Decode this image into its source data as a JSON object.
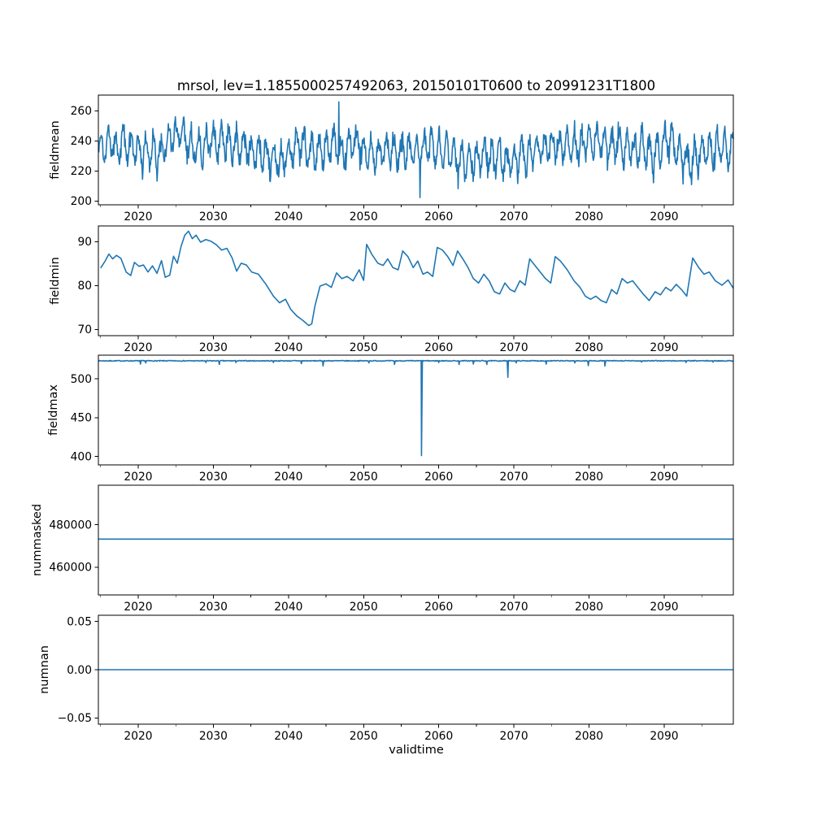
{
  "figure": {
    "title": "mrsol, lev=1.1855000257492063, 20150101T0600 to 20991231T1800",
    "xlabel": "validtime",
    "line_color": "#1f77b4",
    "background_color": "#ffffff",
    "text_color": "#000000",
    "x_range": [
      2014.7,
      2099.2
    ],
    "x_major_ticks": [
      2020,
      2030,
      2040,
      2050,
      2060,
      2070,
      2080,
      2090
    ],
    "x_major_tick_labels": [
      "2020",
      "2030",
      "2040",
      "2050",
      "2060",
      "2070",
      "2080",
      "2090"
    ],
    "x_minor_ticks": [
      2015,
      2025,
      2035,
      2045,
      2055,
      2065,
      2075,
      2085,
      2095
    ]
  },
  "chart_data": [
    {
      "type": "line",
      "ylabel": "fieldmean",
      "ylim": [
        197.5,
        270.5
      ],
      "ytick_values": [
        200,
        220,
        240,
        260
      ],
      "ytick_labels": [
        "200",
        "220",
        "240",
        "260"
      ],
      "series_spec": {
        "kind": "noisy-seasonal",
        "seed": 42,
        "mean": 236,
        "annual_amp": 9.5,
        "slow_amp": 6,
        "noise_amp": 7.5,
        "min_clip": 204,
        "max_clip": 266,
        "points_per_year": 16,
        "forced_points": [
          [
            2057.5,
            202.3
          ],
          [
            2046.7,
            266.0
          ]
        ]
      }
    },
    {
      "type": "line",
      "ylabel": "fieldmin",
      "ylim": [
        68.6,
        93.6
      ],
      "ytick_values": [
        70,
        80,
        90
      ],
      "ytick_labels": [
        "70",
        "80",
        "90"
      ],
      "keypoints": [
        [
          2015.0,
          84.0
        ],
        [
          2015.6,
          85.6
        ],
        [
          2016.1,
          87.2
        ],
        [
          2016.6,
          86.1
        ],
        [
          2017.1,
          86.9
        ],
        [
          2017.7,
          86.2
        ],
        [
          2018.4,
          83.1
        ],
        [
          2019.0,
          82.3
        ],
        [
          2019.5,
          85.3
        ],
        [
          2020.1,
          84.4
        ],
        [
          2020.7,
          84.7
        ],
        [
          2021.3,
          83.1
        ],
        [
          2021.9,
          84.5
        ],
        [
          2022.5,
          82.8
        ],
        [
          2023.1,
          85.7
        ],
        [
          2023.6,
          81.9
        ],
        [
          2024.2,
          82.4
        ],
        [
          2024.7,
          86.7
        ],
        [
          2025.2,
          85.1
        ],
        [
          2025.7,
          88.9
        ],
        [
          2026.2,
          91.5
        ],
        [
          2026.7,
          92.4
        ],
        [
          2027.2,
          90.7
        ],
        [
          2027.7,
          91.5
        ],
        [
          2028.3,
          89.9
        ],
        [
          2029.0,
          90.5
        ],
        [
          2029.7,
          90.1
        ],
        [
          2030.4,
          89.3
        ],
        [
          2031.1,
          88.1
        ],
        [
          2031.8,
          88.5
        ],
        [
          2032.5,
          86.3
        ],
        [
          2033.1,
          83.3
        ],
        [
          2033.7,
          85.1
        ],
        [
          2034.4,
          84.7
        ],
        [
          2035.1,
          83.1
        ],
        [
          2036.0,
          82.6
        ],
        [
          2037.0,
          80.3
        ],
        [
          2038.0,
          77.6
        ],
        [
          2038.8,
          76.1
        ],
        [
          2039.6,
          76.9
        ],
        [
          2040.3,
          74.6
        ],
        [
          2041.1,
          73.1
        ],
        [
          2041.9,
          72.1
        ],
        [
          2042.7,
          70.9
        ],
        [
          2043.1,
          71.3
        ],
        [
          2043.5,
          75.2
        ],
        [
          2044.2,
          79.9
        ],
        [
          2045.0,
          80.4
        ],
        [
          2045.7,
          79.6
        ],
        [
          2046.4,
          82.9
        ],
        [
          2047.1,
          81.6
        ],
        [
          2047.8,
          82.1
        ],
        [
          2048.6,
          81.1
        ],
        [
          2049.4,
          83.6
        ],
        [
          2050.0,
          81.2
        ],
        [
          2050.4,
          89.4
        ],
        [
          2051.1,
          87.1
        ],
        [
          2051.9,
          85.1
        ],
        [
          2052.6,
          84.6
        ],
        [
          2053.2,
          86.1
        ],
        [
          2053.9,
          84.1
        ],
        [
          2054.6,
          83.6
        ],
        [
          2055.2,
          87.9
        ],
        [
          2055.9,
          86.6
        ],
        [
          2056.6,
          84.1
        ],
        [
          2057.2,
          85.6
        ],
        [
          2057.9,
          82.6
        ],
        [
          2058.5,
          83.1
        ],
        [
          2059.2,
          82.1
        ],
        [
          2059.8,
          88.7
        ],
        [
          2060.5,
          88.1
        ],
        [
          2061.2,
          86.6
        ],
        [
          2061.9,
          84.6
        ],
        [
          2062.5,
          87.9
        ],
        [
          2063.2,
          86.1
        ],
        [
          2063.9,
          84.1
        ],
        [
          2064.6,
          81.6
        ],
        [
          2065.3,
          80.6
        ],
        [
          2066.0,
          82.6
        ],
        [
          2066.7,
          81.1
        ],
        [
          2067.4,
          78.6
        ],
        [
          2068.1,
          78.1
        ],
        [
          2068.8,
          80.6
        ],
        [
          2069.5,
          79.1
        ],
        [
          2070.1,
          78.6
        ],
        [
          2070.8,
          81.1
        ],
        [
          2071.5,
          80.1
        ],
        [
          2072.1,
          86.1
        ],
        [
          2072.8,
          84.6
        ],
        [
          2073.5,
          83.1
        ],
        [
          2074.2,
          81.6
        ],
        [
          2074.9,
          80.6
        ],
        [
          2075.5,
          86.6
        ],
        [
          2076.2,
          85.6
        ],
        [
          2077.1,
          83.6
        ],
        [
          2078.0,
          81.1
        ],
        [
          2078.8,
          79.6
        ],
        [
          2079.5,
          77.6
        ],
        [
          2080.2,
          76.9
        ],
        [
          2080.9,
          77.6
        ],
        [
          2081.6,
          76.6
        ],
        [
          2082.3,
          76.1
        ],
        [
          2083.0,
          79.1
        ],
        [
          2083.7,
          78.1
        ],
        [
          2084.4,
          81.6
        ],
        [
          2085.1,
          80.6
        ],
        [
          2085.8,
          81.1
        ],
        [
          2086.5,
          79.6
        ],
        [
          2087.2,
          78.1
        ],
        [
          2088.0,
          76.6
        ],
        [
          2088.8,
          78.6
        ],
        [
          2089.5,
          77.9
        ],
        [
          2090.2,
          79.6
        ],
        [
          2090.9,
          78.8
        ],
        [
          2091.6,
          80.3
        ],
        [
          2092.3,
          79.1
        ],
        [
          2093.0,
          77.6
        ],
        [
          2093.8,
          86.3
        ],
        [
          2094.6,
          84.1
        ],
        [
          2095.3,
          82.6
        ],
        [
          2096.0,
          83.1
        ],
        [
          2096.8,
          81.1
        ],
        [
          2097.7,
          80.1
        ],
        [
          2098.5,
          81.3
        ],
        [
          2099.2,
          79.4
        ]
      ]
    },
    {
      "type": "line",
      "ylabel": "fieldmax",
      "ylim": [
        389.0,
        530.5
      ],
      "ytick_values": [
        400,
        450,
        500
      ],
      "ytick_labels": [
        "400",
        "450",
        "500"
      ],
      "baseline": 523.2,
      "spikes": [
        [
          2020.3,
          519.0
        ],
        [
          2021.0,
          520.5
        ],
        [
          2029.0,
          521.0
        ],
        [
          2030.8,
          518.5
        ],
        [
          2033.0,
          521.0
        ],
        [
          2038.0,
          521.0
        ],
        [
          2041.7,
          519.5
        ],
        [
          2044.6,
          516.5
        ],
        [
          2050.7,
          520.5
        ],
        [
          2054.1,
          518.5
        ],
        [
          2057.7,
          401.0
        ],
        [
          2060.0,
          521.0
        ],
        [
          2062.7,
          518.5
        ],
        [
          2064.6,
          519.0
        ],
        [
          2066.4,
          518.5
        ],
        [
          2069.2,
          502.0
        ],
        [
          2070.3,
          520.5
        ],
        [
          2074.3,
          519.0
        ],
        [
          2078.1,
          520.5
        ],
        [
          2079.9,
          517.0
        ],
        [
          2082.1,
          516.5
        ],
        [
          2087.0,
          521.5
        ],
        [
          2092.9,
          521.0
        ],
        [
          2096.5,
          521.5
        ]
      ]
    },
    {
      "type": "line",
      "ylabel": "nummasked",
      "ylim": [
        447000,
        498500
      ],
      "ytick_values": [
        460000,
        480000
      ],
      "ytick_labels": [
        "460000",
        "480000"
      ],
      "constant": 473200
    },
    {
      "type": "line",
      "ylabel": "numnan",
      "ylim": [
        -0.0565,
        0.0565
      ],
      "ytick_values": [
        -0.05,
        0.0,
        0.05
      ],
      "ytick_labels": [
        "−0.05",
        "0.00",
        "0.05"
      ],
      "constant": 0.0
    }
  ]
}
